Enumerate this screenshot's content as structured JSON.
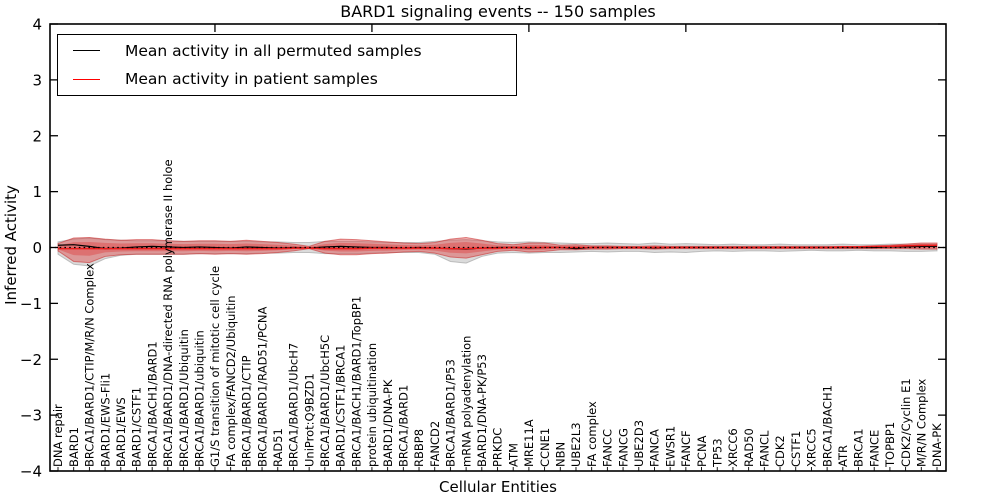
{
  "title": "BARD1 signaling events -- 150 samples",
  "legend": {
    "items": [
      {
        "label": "Mean activity in all permuted samples",
        "color": "#000000"
      },
      {
        "label": "Mean activity in patient samples",
        "color": "#ff0000"
      }
    ]
  },
  "colors": {
    "patient_band_fill": "#dd3c3c",
    "patient_band_edge": "#c82828",
    "permuted_band_fill": "#afafaf",
    "permuted_band_edge": "#969696",
    "patient_line": "#ee1c1c",
    "permuted_line": "#000000",
    "axis": "#000000"
  },
  "chart_data": {
    "type": "line",
    "title": "BARD1 signaling events -- 150 samples",
    "xlabel": "Cellular Entities",
    "ylabel": "Inferred Activity",
    "ylim": [
      -4,
      4
    ],
    "yticks": [
      4,
      3,
      2,
      1,
      0,
      -1,
      -2,
      -3,
      -4
    ],
    "x_major_tick_every": 10,
    "grid": false,
    "legend_position": "upper left",
    "zero_line": true,
    "categories": [
      "DNA repair",
      "BARD1",
      "BRCA1/BARD1/CTIP/M/R/N Complex",
      "BARD1/EWS-Fli1",
      "BARD1/EWS",
      "BARD1/CSTF1",
      "BRCA1/BACH1/BARD1",
      "BRCA1/BARD1/DNA-directed RNA polymerase II holoe",
      "BRCA1/BARD1/Ubiquitin",
      "BRCA1/BARD1/ubiquitin",
      "G1/S transition of mitotic cell cycle",
      "FA complex/FANCD2/Ubiquitin",
      "BRCA1/BARD1/CTIP",
      "BRCA1/BARD1/RAD51/PCNA",
      "RAD51",
      "BRCA1/BARD1/UbcH7",
      "UniProt:Q9BZD1",
      "BRCA1/BARD1/UbcH5C",
      "BARD1/CSTF1/BRCA1",
      "BRCA1/BACH1/BARD1/TopBP1",
      "protein ubiquitination",
      "BARD1/DNA-PK",
      "BRCA1/BARD1",
      "RBBP8",
      "FANCD2",
      "BRCA1/BARD1/P53",
      "mRNA polyadenylation",
      "BARD1/DNA-PK/P53",
      "PRKDC",
      "ATM",
      "MRE11A",
      "CCNE1",
      "NBN",
      "UBE2L3",
      "FA complex",
      "FANCC",
      "FANCG",
      "UBE2D3",
      "FANCA",
      "EWSR1",
      "FANCF",
      "PCNA",
      "TP53",
      "XRCC6",
      "RAD50",
      "FANCL",
      "CDK2",
      "CSTF1",
      "XRCC5",
      "BRCA1/BACH1",
      "ATR",
      "BRCA1",
      "FANCE",
      "TOPBP1",
      "CDK2/Cyclin E1",
      "M/R/N Complex",
      "DNA-PK"
    ],
    "series": [
      {
        "name": "Mean activity in all permuted samples",
        "color": "#000000",
        "values": [
          0.04,
          0.05,
          0.02,
          -0.02,
          -0.01,
          0.01,
          0.02,
          0.01,
          0,
          0.01,
          0,
          -0.01,
          0.01,
          0,
          -0.01,
          0,
          -0.01,
          0.01,
          0.02,
          0.01,
          0,
          0,
          -0.01,
          0,
          -0.01,
          -0.02,
          -0.03,
          -0.01,
          0,
          0,
          -0.01,
          0,
          0,
          -0.02,
          0,
          0,
          0,
          0,
          -0.01,
          0,
          0,
          0,
          0,
          0,
          0,
          0,
          0,
          0,
          0,
          0,
          0,
          0,
          0,
          0.01,
          0.01,
          0.02,
          0.02
        ]
      },
      {
        "name": "Mean activity in patient samples",
        "color": "#ee1c1c",
        "values": [
          -0.02,
          -0.02,
          -0.02,
          -0.02,
          -0.02,
          -0.02,
          -0.02,
          -0.02,
          -0.02,
          -0.02,
          -0.02,
          -0.02,
          -0.02,
          -0.02,
          -0.02,
          -0.01,
          -0.01,
          -0.02,
          -0.02,
          -0.02,
          -0.01,
          -0.01,
          -0.01,
          -0.01,
          -0.01,
          -0.02,
          -0.02,
          -0.01,
          -0.01,
          0,
          0,
          0,
          0,
          0,
          0,
          0,
          0,
          0,
          0,
          0,
          0,
          0,
          0,
          0,
          0,
          0,
          0,
          0,
          0,
          0,
          0.01,
          0.01,
          0.02,
          0.02,
          0.03,
          0.04,
          0.04
        ]
      }
    ],
    "bands": [
      {
        "name": "permuted-activity-range",
        "upper": [
          0.1,
          0.15,
          0.17,
          0.14,
          0.13,
          0.12,
          0.12,
          0.12,
          0.11,
          0.11,
          0.11,
          0.11,
          0.11,
          0.1,
          0.1,
          0.09,
          0.09,
          0.11,
          0.11,
          0.11,
          0.1,
          0.09,
          0.09,
          0.09,
          0.11,
          0.13,
          0.14,
          0.12,
          0.1,
          0.09,
          0.1,
          0.09,
          0.08,
          0.07,
          0.07,
          0.08,
          0.07,
          0.06,
          0.08,
          0.06,
          0.07,
          0.06,
          0.05,
          0.06,
          0.05,
          0.05,
          0.06,
          0.05,
          0.05,
          0.05,
          0.06,
          0.05,
          0.05,
          0.06,
          0.06,
          0.06,
          0.06
        ],
        "lower": [
          -0.12,
          -0.3,
          -0.33,
          -0.2,
          -0.14,
          -0.12,
          -0.12,
          -0.12,
          -0.12,
          -0.11,
          -0.11,
          -0.11,
          -0.11,
          -0.1,
          -0.1,
          -0.09,
          -0.09,
          -0.11,
          -0.11,
          -0.11,
          -0.1,
          -0.09,
          -0.09,
          -0.09,
          -0.12,
          -0.25,
          -0.28,
          -0.16,
          -0.1,
          -0.09,
          -0.1,
          -0.09,
          -0.09,
          -0.08,
          -0.07,
          -0.08,
          -0.07,
          -0.07,
          -0.09,
          -0.08,
          -0.09,
          -0.07,
          -0.06,
          -0.07,
          -0.06,
          -0.06,
          -0.07,
          -0.06,
          -0.05,
          -0.06,
          -0.06,
          -0.05,
          -0.06,
          -0.06,
          -0.07,
          -0.07,
          -0.06
        ]
      },
      {
        "name": "patient-activity-range",
        "inner_scale": 0.55,
        "upper": [
          0.07,
          0.17,
          0.18,
          0.15,
          0.13,
          0.14,
          0.14,
          0.12,
          0.11,
          0.12,
          0.12,
          0.11,
          0.13,
          0.11,
          0.09,
          0.06,
          0.02,
          0.11,
          0.15,
          0.14,
          0.12,
          0.1,
          0.08,
          0.07,
          0.09,
          0.15,
          0.18,
          0.13,
          0.07,
          0.05,
          0.08,
          0.08,
          0.04,
          0.05,
          0.03,
          0.03,
          0.02,
          0.02,
          0.03,
          0.02,
          0.02,
          0.02,
          0.02,
          0.02,
          0.02,
          0.02,
          0.02,
          0.02,
          0.02,
          0.02,
          0.02,
          0.02,
          0.03,
          0.04,
          0.06,
          0.08,
          0.08
        ],
        "lower": [
          -0.06,
          -0.25,
          -0.27,
          -0.16,
          -0.13,
          -0.12,
          -0.12,
          -0.12,
          -0.12,
          -0.11,
          -0.12,
          -0.11,
          -0.12,
          -0.11,
          -0.09,
          -0.06,
          -0.02,
          -0.1,
          -0.13,
          -0.13,
          -0.11,
          -0.1,
          -0.08,
          -0.07,
          -0.1,
          -0.17,
          -0.19,
          -0.13,
          -0.07,
          -0.05,
          -0.08,
          -0.07,
          -0.04,
          -0.04,
          -0.03,
          -0.03,
          -0.02,
          -0.02,
          -0.03,
          -0.02,
          -0.02,
          -0.02,
          -0.02,
          -0.02,
          -0.02,
          -0.02,
          -0.02,
          -0.02,
          -0.02,
          -0.02,
          -0.02,
          -0.02,
          -0.02,
          -0.02,
          -0.02,
          -0.03,
          -0.03
        ]
      }
    ]
  }
}
